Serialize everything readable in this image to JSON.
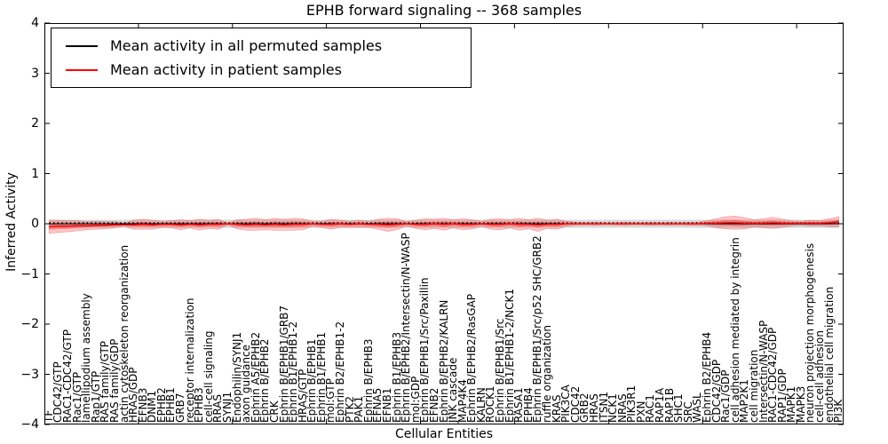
{
  "title": "EPHB forward signaling -- 368 samples",
  "axes": {
    "xlabel": "Cellular Entities",
    "ylabel": "Inferred Activity",
    "ylim": [
      -4,
      4
    ],
    "yticks": [
      4,
      3,
      2,
      1,
      0,
      -1,
      -2,
      -3,
      -4
    ],
    "xtick_positions": [
      10,
      20,
      30,
      40,
      50,
      60,
      70,
      80
    ]
  },
  "chart_data": {
    "type": "line",
    "title": "EPHB forward signaling -- 368 samples",
    "xlabel": "Cellular Entities",
    "ylabel": "Inferred Activity",
    "ylim": [
      -4,
      4
    ],
    "n_samples": 368,
    "grid": false,
    "legend_position": "upper left",
    "categories": [
      "TF",
      "CDC42/GTP",
      "RAC1-CDC42/GTP",
      "Rac1/GTP",
      "lamellipodium assembly",
      "Rap1/GTP",
      "RAS family/GTP",
      "RAS family/GDP",
      "actin cytoskeleton reorganization",
      "HRAS/GDP",
      "EFNB3",
      "DNM1",
      "EPHB2",
      "EPHB1",
      "GRB7",
      "receptor internalization",
      "EPHB3",
      "cell-cell signaling",
      "RRAS",
      "SYNJ1",
      "Endophilin/SYNJ1",
      "axon guidance",
      "Ephrin A5/EPHB2",
      "Ephrin B/EPHB2",
      "CRK",
      "Ephrin B/EPHB1/GRB7",
      "Ephrin B1/EPHB1-2",
      "HRAS/GTP",
      "Ephrin B/EPHB1",
      "Ephrin B1/EPHB1",
      "mol:GTP",
      "Ephrin B2/EPHB1-2",
      "PTK2",
      "PAK1",
      "Ephrin B/EPHB3",
      "EFNA5",
      "EFNB1",
      "Ephrin B1/EPHB3",
      "Ephrin B/EPHB2/Intersectin/N-WASP",
      "mol:GDP",
      "Ephrin B/EPHB1/Src/Paxillin",
      "EFNB2",
      "Ephrin B/EPHB2/KALRN",
      "JNK cascade",
      "MAP4K4",
      "Ephrin B/EPHB2/RasGAP",
      "KALRN",
      "ROCK1",
      "Ephrin B/EPHB1/Src",
      "Ephrin B1/EPHB1-2/NCK1",
      "RASA1",
      "EPHB4",
      "Ephrin B/EPHB1/Src/p52 SHC/GRB2",
      "ruffle organization",
      "KRAS",
      "PIK3CA",
      "CDC42",
      "GRB2",
      "HRAS",
      "ITSN1",
      "NCK1",
      "NRAS",
      "PIK3R1",
      "PXN",
      "RAC1",
      "RAP1A",
      "RAP1B",
      "SHC1",
      "SRC",
      "WASL",
      "Ephrin B2/EPHB4",
      "CDC42/GDP",
      "Rac1/GDP",
      "cell adhesion mediated by integrin",
      "MAP2K1",
      "cell migration",
      "Intersectin/N-WASP",
      "RAC1-CDC42/GDP",
      "RAP1/GDP",
      "MAPK1",
      "MAPK3",
      "neuron projection morphogenesis",
      "cell-cell adhesion",
      "endothelial cell migration",
      "PI3K"
    ],
    "series": [
      {
        "name": "Mean activity in all permuted samples",
        "color": "#000000",
        "style": "solid+dotted",
        "values": [
          0,
          0,
          0,
          0,
          0,
          0,
          0,
          0,
          0,
          0,
          0,
          0,
          0,
          0,
          0,
          0,
          0,
          0,
          0,
          0,
          0,
          0,
          0,
          0,
          0,
          0,
          0,
          0,
          0,
          0,
          0,
          0,
          0,
          0,
          0,
          0,
          0,
          0,
          0,
          0,
          0,
          0,
          0,
          0,
          0,
          0,
          0,
          0,
          0,
          0,
          0,
          0,
          0,
          0,
          0,
          0,
          0,
          0,
          0,
          0,
          0,
          0,
          0,
          0,
          0,
          0,
          0,
          0,
          0,
          0,
          0,
          0,
          0,
          0,
          0,
          0,
          0,
          0,
          0,
          0,
          0,
          0,
          0,
          0,
          0
        ],
        "std": [
          0.08,
          0.08,
          0.08,
          0.08,
          0.08,
          0.08,
          0.08,
          0.08,
          0.08,
          0.08,
          0.08,
          0.08,
          0.08,
          0.08,
          0.08,
          0.08,
          0.08,
          0.08,
          0.08,
          0.08,
          0.08,
          0.08,
          0.08,
          0.08,
          0.08,
          0.08,
          0.08,
          0.08,
          0.08,
          0.08,
          0.08,
          0.08,
          0.08,
          0.08,
          0.08,
          0.08,
          0.08,
          0.08,
          0.08,
          0.08,
          0.08,
          0.08,
          0.08,
          0.08,
          0.08,
          0.08,
          0.08,
          0.08,
          0.08,
          0.08,
          0.08,
          0.08,
          0.08,
          0.08,
          0.08,
          0.08,
          0.08,
          0.08,
          0.08,
          0.08,
          0.08,
          0.08,
          0.08,
          0.08,
          0.08,
          0.08,
          0.08,
          0.08,
          0.08,
          0.08,
          0.08,
          0.08,
          0.08,
          0.08,
          0.08,
          0.08,
          0.08,
          0.08,
          0.08,
          0.08,
          0.08,
          0.08,
          0.08,
          0.08,
          0.08
        ]
      },
      {
        "name": "Mean activity in patient samples",
        "color": "#ff0000",
        "style": "solid",
        "values": [
          -0.06,
          -0.05,
          -0.05,
          -0.04,
          -0.04,
          -0.03,
          -0.03,
          -0.02,
          -0.02,
          -0.02,
          -0.01,
          -0.02,
          -0.01,
          -0.01,
          -0.02,
          -0.01,
          -0.02,
          -0.01,
          -0.01,
          0.0,
          -0.01,
          -0.02,
          -0.01,
          -0.02,
          -0.01,
          -0.02,
          -0.01,
          -0.01,
          0.0,
          -0.01,
          -0.01,
          0.0,
          -0.01,
          0.0,
          -0.01,
          -0.01,
          -0.02,
          -0.01,
          0.0,
          -0.01,
          -0.01,
          0.0,
          -0.01,
          0.0,
          -0.01,
          -0.01,
          0.0,
          -0.01,
          -0.01,
          0.0,
          -0.01,
          -0.01,
          -0.02,
          -0.01,
          -0.01,
          0.0,
          0.0,
          0.0,
          0.0,
          0.0,
          0.0,
          0.0,
          0.0,
          0.0,
          0.0,
          0.0,
          0.0,
          0.0,
          0.0,
          0.0,
          0.01,
          0.01,
          0.02,
          0.02,
          0.01,
          0.01,
          0.01,
          0.02,
          0.01,
          0.01,
          0.01,
          0.01,
          0.01,
          0.02,
          0.04
        ],
        "std": [
          0.13,
          0.12,
          0.11,
          0.1,
          0.08,
          0.08,
          0.07,
          0.06,
          0.03,
          0.09,
          0.1,
          0.09,
          0.06,
          0.07,
          0.1,
          0.07,
          0.11,
          0.08,
          0.1,
          0.02,
          0.09,
          0.11,
          0.12,
          0.1,
          0.12,
          0.11,
          0.12,
          0.11,
          0.05,
          0.06,
          0.1,
          0.07,
          0.06,
          0.07,
          0.06,
          0.1,
          0.13,
          0.11,
          0.04,
          0.08,
          0.11,
          0.09,
          0.12,
          0.08,
          0.11,
          0.09,
          0.05,
          0.1,
          0.11,
          0.08,
          0.12,
          0.09,
          0.13,
          0.08,
          0.1,
          0.05,
          0.03,
          0.02,
          0.03,
          0.02,
          0.02,
          0.03,
          0.02,
          0.02,
          0.03,
          0.02,
          0.03,
          0.02,
          0.03,
          0.03,
          0.05,
          0.09,
          0.12,
          0.13,
          0.11,
          0.07,
          0.09,
          0.11,
          0.08,
          0.05,
          0.04,
          0.06,
          0.05,
          0.08,
          0.1
        ]
      }
    ]
  }
}
